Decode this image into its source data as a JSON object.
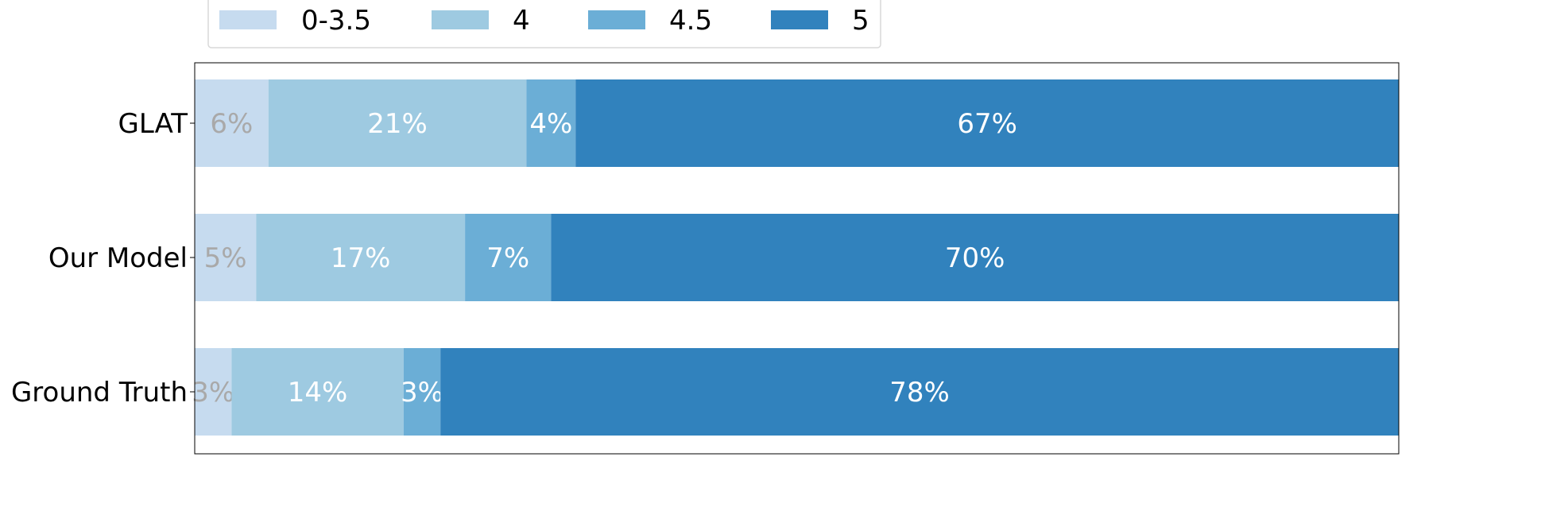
{
  "chart_data": {
    "type": "bar",
    "orientation": "horizontal",
    "stacked": true,
    "categories": [
      "GLAT",
      "Our Model",
      "Ground Truth"
    ],
    "series": [
      {
        "name": "0-3.5",
        "values": [
          6,
          5,
          3
        ],
        "labels": [
          "6%",
          "5%",
          "3%"
        ],
        "color": "#c6dbef",
        "label_color": "#a9a9a9"
      },
      {
        "name": "4",
        "values": [
          21,
          17,
          14
        ],
        "labels": [
          "21%",
          "17%",
          "14%"
        ],
        "color": "#9ecae1",
        "label_color": "#ffffff"
      },
      {
        "name": "4.5",
        "values": [
          4,
          7,
          3
        ],
        "labels": [
          "4%",
          "7%",
          "3%"
        ],
        "color": "#6baed6",
        "label_color": "#ffffff"
      },
      {
        "name": "5",
        "values": [
          67,
          70,
          78
        ],
        "labels": [
          "67%",
          "70%",
          "78%"
        ],
        "color": "#3182bd",
        "label_color": "#ffffff"
      }
    ],
    "xlim": [
      0,
      98
    ],
    "legend": "top",
    "grid": false,
    "title": "",
    "xlabel": "",
    "ylabel": ""
  }
}
